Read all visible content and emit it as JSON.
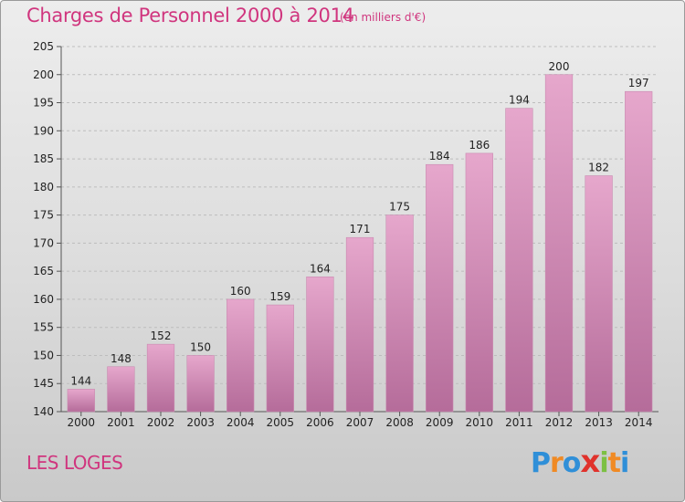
{
  "header": {
    "title": "Charges de Personnel 2000 à 2014",
    "unit": "(en milliers d'€)"
  },
  "footer": {
    "commune": "LES LOGES",
    "logo": {
      "letters": [
        "P",
        "r",
        "o",
        "x",
        "i",
        "t",
        "i"
      ],
      "colors": [
        "#2f8fd8",
        "#f08a24",
        "#2f8fd8",
        "#e0322c",
        "#7cc043",
        "#f08a24",
        "#2f8fd8"
      ]
    }
  },
  "colors": {
    "bar_top": "#e6a7cc",
    "bar_bottom": "#b56c9a",
    "text_accent": "#d0357e",
    "grid": "#bdbdbd"
  },
  "chart_data": {
    "type": "bar",
    "categories": [
      "2000",
      "2001",
      "2002",
      "2003",
      "2004",
      "2005",
      "2006",
      "2007",
      "2008",
      "2009",
      "2010",
      "2011",
      "2012",
      "2013",
      "2014"
    ],
    "values": [
      144,
      148,
      152,
      150,
      160,
      159,
      164,
      171,
      175,
      184,
      186,
      194,
      200,
      182,
      197
    ],
    "title": "Charges de Personnel 2000 à 2014",
    "xlabel": "",
    "ylabel": "",
    "ylim": [
      140,
      205
    ],
    "yticks": [
      140,
      145,
      150,
      155,
      160,
      165,
      170,
      175,
      180,
      185,
      190,
      195,
      200,
      205
    ],
    "grid": true,
    "data_labels": true
  }
}
